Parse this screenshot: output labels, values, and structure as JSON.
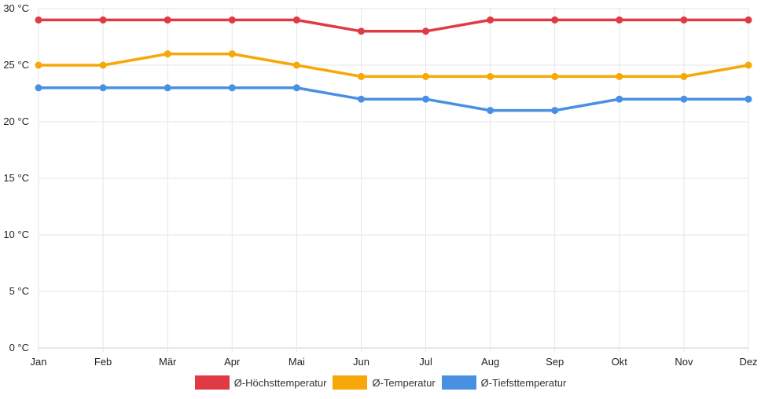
{
  "chart_data": {
    "type": "line",
    "categories": [
      "Jan",
      "Feb",
      "Mär",
      "Apr",
      "Mai",
      "Jun",
      "Jul",
      "Aug",
      "Sep",
      "Okt",
      "Nov",
      "Dez"
    ],
    "y_ticks": [
      0,
      5,
      10,
      15,
      20,
      25,
      30
    ],
    "y_unit": " °C",
    "ylim": [
      0,
      30
    ],
    "grid": true,
    "legend_position": "bottom",
    "series": [
      {
        "name": "Ø-Höchsttemperatur",
        "color": "#e03a45",
        "values": [
          29,
          29,
          29,
          29,
          29,
          28,
          28,
          29,
          29,
          29,
          29,
          29
        ]
      },
      {
        "name": "Ø-Temperatur",
        "color": "#f7a707",
        "values": [
          25,
          25,
          26,
          26,
          25,
          24,
          24,
          24,
          24,
          24,
          24,
          25
        ]
      },
      {
        "name": "Ø-Tiefsttemperatur",
        "color": "#4a90e2",
        "values": [
          23,
          23,
          23,
          23,
          23,
          22,
          22,
          21,
          21,
          22,
          22,
          22
        ]
      }
    ]
  }
}
